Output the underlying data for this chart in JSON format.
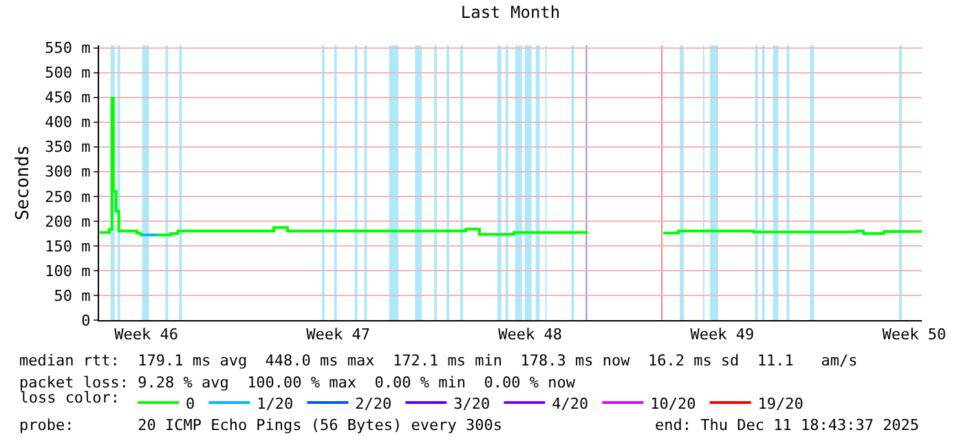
{
  "chart_data": {
    "type": "step",
    "title": "Last Month",
    "ylabel": "Seconds",
    "xlim": [
      "2025-11-11T18:43",
      "2025-12-11T18:43"
    ],
    "xticks": [
      {
        "value": "2025-11-13T12:00",
        "label": "Week 46"
      },
      {
        "value": "2025-11-20T12:00",
        "label": "Week 47"
      },
      {
        "value": "2025-11-27T12:00",
        "label": "Week 48"
      },
      {
        "value": "2025-12-04T12:00",
        "label": "Week 49"
      },
      {
        "value": "2025-12-11T12:00",
        "label": "Week 50"
      }
    ],
    "ylim": [
      0,
      555
    ],
    "yticks": [
      {
        "value": 0,
        "label": "0"
      },
      {
        "value": 50,
        "label": "50 m"
      },
      {
        "value": 100,
        "label": "100 m"
      },
      {
        "value": 150,
        "label": "150 m"
      },
      {
        "value": 200,
        "label": "200 m"
      },
      {
        "value": 250,
        "label": "250 m"
      },
      {
        "value": 300,
        "label": "300 m"
      },
      {
        "value": 350,
        "label": "350 m"
      },
      {
        "value": 400,
        "label": "400 m"
      },
      {
        "value": 450,
        "label": "450 m"
      },
      {
        "value": 500,
        "label": "500 m"
      },
      {
        "value": 550,
        "label": "550 m"
      }
    ],
    "grid": "y",
    "legend": "bottom",
    "legend_title": "loss color:",
    "series": [
      {
        "name": "0",
        "color": "#00ff00",
        "x": [
          "2025-11-11T19:12",
          "2025-11-12T03:36",
          "2025-11-12T06:00",
          "2025-11-12T07:12",
          "2025-11-12T09:36",
          "2025-11-12T12:00",
          "2025-11-13T03:36",
          "2025-11-13T07:12",
          "2025-11-13T21:36",
          "2025-11-14T09:36",
          "2025-11-14T15:36",
          "2025-11-18T01:12",
          "2025-11-18T03:36",
          "2025-11-18T13:12",
          "2025-11-18T15:36",
          "2025-11-19T21:36",
          "2025-11-25T01:12",
          "2025-11-25T03:36",
          "2025-11-25T12:00",
          "2025-11-25T15:36",
          "2025-11-26T03:36",
          "2025-11-26T21:36",
          "2025-11-29T13:12",
          "2025-11-29T14:24",
          "2025-12-02T08:24",
          "2025-12-02T21:36",
          "2025-12-05T15:36",
          "2025-12-07T15:36",
          "2025-12-09T09:36",
          "2025-12-09T15:36",
          "2025-12-10T09:36",
          "2025-12-11T18:43"
        ],
        "values": [
          177,
          183,
          448,
          260,
          220,
          180,
          176,
          172,
          172,
          175,
          180,
          180,
          187,
          187,
          180,
          180,
          180,
          184,
          184,
          173,
          173,
          177,
          180,
          null,
          176,
          180,
          178,
          178,
          180,
          175,
          179,
          179
        ]
      },
      {
        "name": "1/20",
        "color": "#00b8ff",
        "x": [
          "2025-11-13T08:24",
          "2025-11-13T21:36"
        ],
        "values": [
          172,
          172
        ]
      },
      {
        "name": "2/20",
        "color": "#0059ff"
      },
      {
        "name": "3/20",
        "color": "#5e00ff"
      },
      {
        "name": "4/20",
        "color": "#7e00ff"
      },
      {
        "name": "10/20",
        "color": "#dd00ff"
      },
      {
        "name": "19/20",
        "color": "#ff0000"
      }
    ],
    "bands": [
      {
        "axis": "x",
        "from": "2025-11-12T04:48",
        "to": "2025-11-12T08:24",
        "color": "#aee8fa"
      },
      {
        "axis": "x",
        "from": "2025-11-12T10:48",
        "to": "2025-11-12T13:12",
        "color": "#aee8fa"
      },
      {
        "axis": "x",
        "from": "2025-11-13T08:24",
        "to": "2025-11-13T14:24",
        "color": "#aee8fa"
      },
      {
        "axis": "x",
        "from": "2025-11-14T04:48",
        "to": "2025-11-14T07:12",
        "color": "#aee8fa"
      },
      {
        "axis": "x",
        "from": "2025-11-14T16:48",
        "to": "2025-11-14T19:12",
        "color": "#aee8fa"
      },
      {
        "axis": "x",
        "from": "2025-11-19T21:36",
        "to": "2025-11-20T00:00",
        "color": "#aee8fa"
      },
      {
        "axis": "x",
        "from": "2025-11-20T08:24",
        "to": "2025-11-20T10:48",
        "color": "#aee8fa"
      },
      {
        "axis": "x",
        "from": "2025-11-21T02:24",
        "to": "2025-11-21T04:48",
        "color": "#aee8fa"
      },
      {
        "axis": "x",
        "from": "2025-11-21T10:48",
        "to": "2025-11-21T13:12",
        "color": "#aee8fa"
      },
      {
        "axis": "x",
        "from": "2025-11-22T08:24",
        "to": "2025-11-22T16:48",
        "color": "#aee8fa"
      },
      {
        "axis": "x",
        "from": "2025-11-23T07:12",
        "to": "2025-11-23T13:12",
        "color": "#aee8fa"
      },
      {
        "axis": "x",
        "from": "2025-11-24T00:00",
        "to": "2025-11-24T02:24",
        "color": "#aee8fa"
      },
      {
        "axis": "x",
        "from": "2025-11-24T10:48",
        "to": "2025-11-24T13:12",
        "color": "#aee8fa"
      },
      {
        "axis": "x",
        "from": "2025-11-24T22:48",
        "to": "2025-11-25T01:12",
        "color": "#aee8fa"
      },
      {
        "axis": "x",
        "from": "2025-11-26T07:12",
        "to": "2025-11-26T10:48",
        "color": "#aee8fa"
      },
      {
        "axis": "x",
        "from": "2025-11-26T14:24",
        "to": "2025-11-26T16:48",
        "color": "#aee8fa"
      },
      {
        "axis": "x",
        "from": "2025-11-26T22:48",
        "to": "2025-11-27T04:48",
        "color": "#aee8fa"
      },
      {
        "axis": "x",
        "from": "2025-11-27T07:12",
        "to": "2025-11-27T13:12",
        "color": "#aee8fa"
      },
      {
        "axis": "x",
        "from": "2025-11-27T16:48",
        "to": "2025-11-27T20:24",
        "color": "#aee8fa"
      },
      {
        "axis": "x",
        "from": "2025-11-28T01:12",
        "to": "2025-11-28T02:24",
        "color": "#aee8fa"
      },
      {
        "axis": "x",
        "from": "2025-11-29T00:00",
        "to": "2025-11-29T02:24",
        "color": "#aee8fa"
      },
      {
        "axis": "x",
        "from": "2025-12-02T22:48",
        "to": "2025-12-03T02:24",
        "color": "#aee8fa"
      },
      {
        "axis": "x",
        "from": "2025-12-03T19:12",
        "to": "2025-12-03T20:24",
        "color": "#aee8fa"
      },
      {
        "axis": "x",
        "from": "2025-12-04T01:12",
        "to": "2025-12-04T08:24",
        "color": "#aee8fa"
      },
      {
        "axis": "x",
        "from": "2025-12-05T16:48",
        "to": "2025-12-05T19:12",
        "color": "#aee8fa"
      },
      {
        "axis": "x",
        "from": "2025-12-05T22:48",
        "to": "2025-12-06T01:12",
        "color": "#aee8fa"
      },
      {
        "axis": "x",
        "from": "2025-12-06T08:24",
        "to": "2025-12-06T13:12",
        "color": "#aee8fa"
      },
      {
        "axis": "x",
        "from": "2025-12-06T20:24",
        "to": "2025-12-06T22:48",
        "color": "#aee8fa"
      },
      {
        "axis": "x",
        "from": "2025-12-07T16:48",
        "to": "2025-12-07T20:24",
        "color": "#aee8fa"
      },
      {
        "axis": "x",
        "from": "2025-12-10T22:48",
        "to": "2025-12-11T01:12",
        "color": "#aee8fa"
      }
    ],
    "ref_lines": [
      {
        "axis": "x",
        "value": "2025-11-29T13:12",
        "color": "#a080e0"
      },
      {
        "axis": "x",
        "value": "2025-12-02T07:12",
        "color": "#ff8080"
      }
    ],
    "annotations": [
      "median rtt:  179.1 ms avg  448.0 ms max  172.1 ms min  178.3 ms now  16.2 ms sd  11.1   am/s",
      "packet loss: 9.28 % avg  100.00 % max  0.00 % min  0.00 % now",
      "probe:       20 ICMP Echo Pings (56 Bytes) every 300s",
      "end: Thu Dec 11 18:43:37 2025"
    ]
  }
}
